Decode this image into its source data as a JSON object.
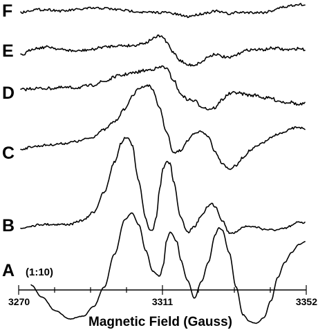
{
  "chart_data": {
    "type": "line",
    "xlabel": "Magnetic Field (Gauss)",
    "xlim": [
      3270,
      3352
    ],
    "x_ticks": [
      "3270",
      "3311",
      "3352"
    ],
    "grid": false,
    "annotation": "(1:10)",
    "series": [
      {
        "label": "A",
        "noise": 0.2,
        "baseline": 388,
        "x": [
          3273,
          3276,
          3280,
          3284,
          3288,
          3291,
          3294,
          3297,
          3300,
          3302,
          3304,
          3306,
          3308,
          3310,
          3311,
          3312,
          3313,
          3315,
          3316,
          3318,
          3320,
          3322,
          3324,
          3326,
          3327,
          3328,
          3330,
          3332,
          3334,
          3336,
          3337,
          3338,
          3340,
          3342,
          3344,
          3346,
          3348,
          3350,
          3352
        ],
        "y": [
          -25,
          -42,
          -62,
          -74,
          -70,
          -56,
          -28,
          20,
          70,
          80,
          62,
          25,
          -5,
          -12,
          3,
          40,
          52,
          38,
          12,
          -18,
          -44,
          -20,
          8,
          48,
          58,
          55,
          22,
          -28,
          -68,
          -78,
          -80,
          -80,
          -72,
          -48,
          -14,
          8,
          22,
          34,
          38
        ]
      },
      {
        "label": "B",
        "noise": 0.7,
        "baseline": 325,
        "x": [
          3270,
          3273,
          3276,
          3280,
          3284,
          3288,
          3291,
          3294,
          3297,
          3299,
          3300,
          3301,
          3302,
          3304,
          3306,
          3307,
          3308,
          3309,
          3310,
          3311,
          3312,
          3313,
          3314,
          3316,
          3318,
          3320,
          3322,
          3324,
          3325,
          3326,
          3328,
          3330,
          3332,
          3334,
          3336,
          3338,
          3340,
          3342,
          3344,
          3346,
          3348,
          3350,
          3352
        ],
        "y": [
          -6,
          -2,
          0,
          0,
          0,
          6,
          18,
          46,
          90,
          118,
          126,
          126,
          115,
          62,
          8,
          -8,
          -10,
          10,
          52,
          82,
          92,
          88,
          62,
          10,
          -12,
          -3,
          12,
          27,
          30,
          26,
          6,
          -12,
          -12,
          -3,
          -3,
          -4,
          -7,
          -8,
          -8,
          -6,
          -2,
          4,
          2
        ]
      },
      {
        "label": "C",
        "noise": 0.7,
        "baseline": 212,
        "x": [
          3270,
          3274,
          3278,
          3282,
          3286,
          3290,
          3294,
          3297,
          3300,
          3302,
          3304,
          3306,
          3307,
          3308,
          3310,
          3312,
          3314,
          3316,
          3318,
          3320,
          3322,
          3324,
          3326,
          3328,
          3330,
          3332,
          3334,
          3336,
          3338,
          3340,
          3342,
          3344,
          3346,
          3348,
          3350,
          3352
        ],
        "y": [
          -4,
          0,
          2,
          4,
          7,
          12,
          24,
          36,
          54,
          72,
          84,
          88,
          88,
          82,
          55,
          20,
          -10,
          -6,
          8,
          18,
          22,
          14,
          -8,
          -24,
          -33,
          -28,
          -16,
          -6,
          0,
          6,
          12,
          18,
          20,
          26,
          28,
          24
        ]
      },
      {
        "label": "D",
        "noise": 1.0,
        "baseline": 128,
        "x": [
          3270,
          3274,
          3278,
          3282,
          3286,
          3290,
          3294,
          3298,
          3302,
          3306,
          3308,
          3310,
          3311,
          3312,
          3314,
          3316,
          3318,
          3320,
          3322,
          3324,
          3326,
          3328,
          3330,
          3332,
          3334,
          3336,
          3338,
          3340,
          3342,
          3344,
          3346,
          3348,
          3350,
          3352
        ],
        "y": [
          -2,
          0,
          0,
          1,
          1,
          4,
          10,
          18,
          22,
          26,
          28,
          30,
          32,
          28,
          12,
          -8,
          -16,
          -18,
          -26,
          -30,
          -28,
          -16,
          -8,
          -6,
          -8,
          -10,
          -10,
          -14,
          -14,
          -18,
          -20,
          -20,
          -24,
          -22
        ]
      },
      {
        "label": "E",
        "noise": 0.9,
        "baseline": 72,
        "x": [
          3270,
          3274,
          3278,
          3282,
          3286,
          3290,
          3294,
          3298,
          3302,
          3306,
          3308,
          3310,
          3311,
          3312,
          3314,
          3316,
          3318,
          3320,
          3322,
          3324,
          3326,
          3328,
          3330,
          3332,
          3334,
          3336,
          3338,
          3340,
          3342,
          3344,
          3346,
          3348,
          3350,
          3352
        ],
        "y": [
          -8,
          2,
          4,
          0,
          -2,
          0,
          4,
          6,
          6,
          10,
          16,
          20,
          18,
          10,
          -4,
          -16,
          -22,
          -22,
          -18,
          -10,
          -6,
          -10,
          -12,
          -8,
          -2,
          0,
          0,
          0,
          2,
          2,
          0,
          0,
          2,
          0
        ]
      },
      {
        "label": "F",
        "noise": 0.8,
        "baseline": 14,
        "x": [
          3270,
          3274,
          3278,
          3282,
          3286,
          3290,
          3294,
          3298,
          3302,
          3306,
          3310,
          3312,
          3314,
          3316,
          3318,
          3320,
          3322,
          3324,
          3326,
          3328,
          3330,
          3332,
          3334,
          3336,
          3338,
          3340,
          3342,
          3344,
          3346,
          3348,
          3350,
          3352
        ],
        "y": [
          -4,
          0,
          0,
          -2,
          0,
          2,
          2,
          0,
          -2,
          -4,
          -4,
          -4,
          -6,
          -8,
          -10,
          -8,
          -6,
          -4,
          -2,
          -4,
          -6,
          -4,
          -4,
          -4,
          -4,
          -4,
          -2,
          2,
          4,
          6,
          8,
          6
        ]
      }
    ]
  }
}
